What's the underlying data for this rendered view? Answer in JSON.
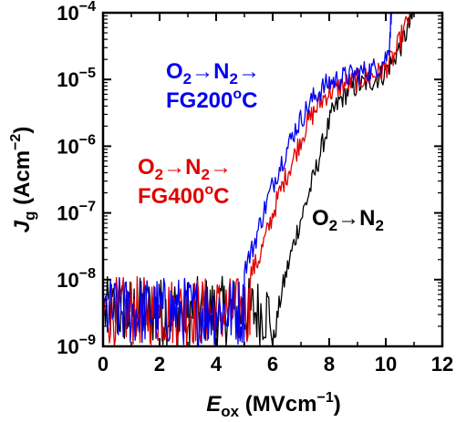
{
  "chart_data": {
    "type": "line",
    "x_scale": "linear",
    "y_scale": "log",
    "xlim": [
      0,
      12
    ],
    "ylim": [
      1e-09,
      0.0001
    ],
    "x_ticks": [
      0,
      2,
      4,
      6,
      8,
      10,
      12
    ],
    "x_tick_labels": [
      "0",
      "2",
      "4",
      "6",
      "8",
      "10",
      "12"
    ],
    "y_ticks": [
      1e-09,
      1e-08,
      1e-07,
      1e-06,
      1e-05,
      0.0001
    ],
    "y_tick_labels": [
      {
        "base": "10",
        "exp": "−9"
      },
      {
        "base": "10",
        "exp": "−8"
      },
      {
        "base": "10",
        "exp": "−7"
      },
      {
        "base": "10",
        "exp": "−6"
      },
      {
        "base": "10",
        "exp": "−5"
      },
      {
        "base": "10",
        "exp": "−4"
      }
    ],
    "xlabel": {
      "main": "E",
      "sub": "ox",
      "unit": " (MVcm",
      "unit_exp": "−1",
      "unit_end": ")"
    },
    "ylabel": {
      "main": "J",
      "sub": "g",
      "unit": " (Acm",
      "unit_exp": "−2",
      "unit_end": ")"
    },
    "grid": false,
    "series": [
      {
        "color": "#000000",
        "label_lines": [
          [
            "O",
            "2",
            "→N",
            "2"
          ]
        ],
        "noise_floor": {
          "x_start": 0.05,
          "x_end": 5.95,
          "log_min": -9.0,
          "log_max": -7.95
        },
        "x": [
          6.0,
          6.3,
          6.6,
          6.9,
          7.2,
          7.5,
          7.8,
          8.1,
          8.4,
          8.7,
          9.0,
          9.3,
          9.6,
          9.9,
          10.2,
          10.5,
          10.8,
          11.0
        ],
        "y": [
          1e-09,
          6e-09,
          2e-08,
          6e-08,
          1.5e-07,
          4e-07,
          1.2e-06,
          3e-06,
          5e-06,
          7e-06,
          8e-06,
          9e-06,
          1e-05,
          1.2e-05,
          1.8e-05,
          3e-05,
          6e-05,
          0.0001
        ]
      },
      {
        "color": "#e00000",
        "label_lines": [
          [
            "O",
            "2",
            "→N",
            "2",
            "→"
          ],
          [
            "FG400",
            "o",
            "C"
          ]
        ],
        "noise_floor": {
          "x_start": 0.05,
          "x_end": 5.2,
          "log_min": -9.0,
          "log_max": -7.95
        },
        "x": [
          5.2,
          5.5,
          5.8,
          6.1,
          6.4,
          6.7,
          7.0,
          7.3,
          7.6,
          7.9,
          8.2,
          8.5,
          8.8,
          9.1,
          9.4,
          9.7,
          10.0,
          10.3,
          10.6,
          10.9
        ],
        "y": [
          1.2e-08,
          2e-08,
          5e-08,
          1.3e-07,
          3e-07,
          6e-07,
          1.3e-06,
          2.5e-06,
          4e-06,
          6e-06,
          7e-06,
          8.5e-06,
          9e-06,
          1e-05,
          1.1e-05,
          1.2e-05,
          1.5e-05,
          2.2e-05,
          5e-05,
          0.0001
        ]
      },
      {
        "color": "#0000ee",
        "label_lines": [
          [
            "O",
            "2",
            "→N",
            "2",
            "→"
          ],
          [
            "FG200",
            "o",
            "C"
          ]
        ],
        "noise_floor": {
          "x_start": 0.05,
          "x_end": 5.0,
          "log_min": -9.0,
          "log_max": -7.95
        },
        "x": [
          5.0,
          5.3,
          5.6,
          5.9,
          6.2,
          6.5,
          6.8,
          7.1,
          7.4,
          7.7,
          8.0,
          8.3,
          8.6,
          8.9,
          9.2,
          9.5,
          9.8,
          10.1,
          10.2
        ],
        "y": [
          1.5e-08,
          3e-08,
          8e-08,
          2e-07,
          4.5e-07,
          9e-07,
          1.8e-06,
          3e-06,
          5e-06,
          7e-06,
          9e-06,
          1e-05,
          1.1e-05,
          1.2e-05,
          1.3e-05,
          1.4e-05,
          1.6e-05,
          2.5e-05,
          0.0001
        ]
      }
    ]
  }
}
